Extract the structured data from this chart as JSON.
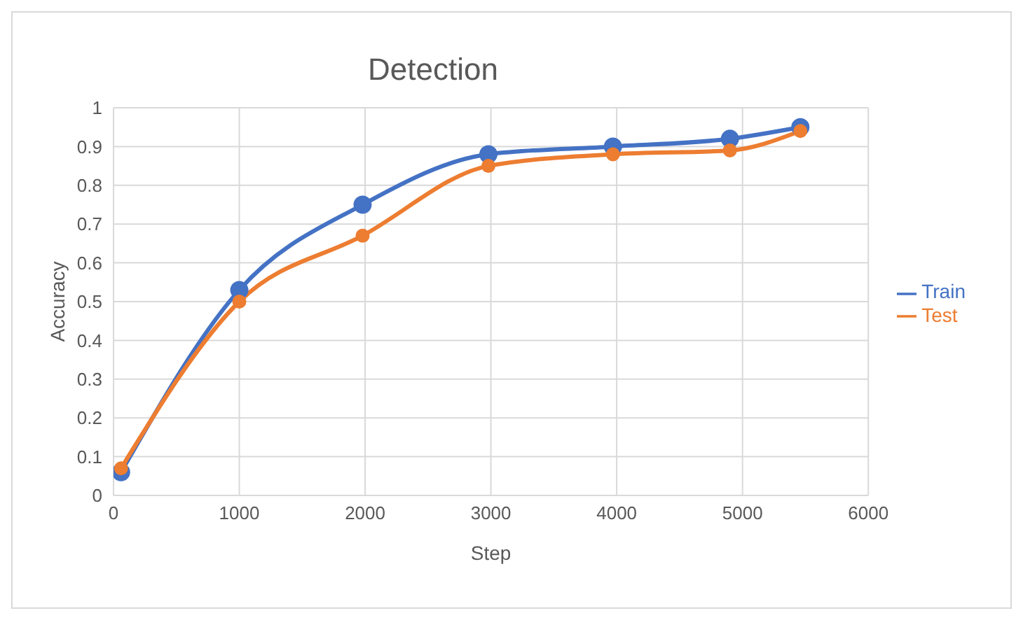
{
  "chart_data": {
    "type": "line",
    "title": "Detection",
    "xlabel": "Step",
    "ylabel": "Accuracy",
    "x": [
      60,
      1000,
      1980,
      2980,
      3970,
      4900,
      5460
    ],
    "series": [
      {
        "name": "Train",
        "color": "#4472c4",
        "values": [
          0.06,
          0.53,
          0.75,
          0.88,
          0.9,
          0.92,
          0.95
        ]
      },
      {
        "name": "Test",
        "color": "#ed7d31",
        "values": [
          0.07,
          0.5,
          0.67,
          0.85,
          0.88,
          0.89,
          0.94
        ]
      }
    ],
    "xlim": [
      0,
      6000
    ],
    "xticks": [
      0,
      1000,
      2000,
      3000,
      4000,
      5000,
      6000
    ],
    "ylim": [
      0,
      1
    ],
    "yticks": [
      0,
      0.1,
      0.2,
      0.3,
      0.4,
      0.5,
      0.6,
      0.7,
      0.8,
      0.9,
      1
    ],
    "grid": true,
    "legend": "right",
    "marker": "circle",
    "line_style": "solid"
  }
}
